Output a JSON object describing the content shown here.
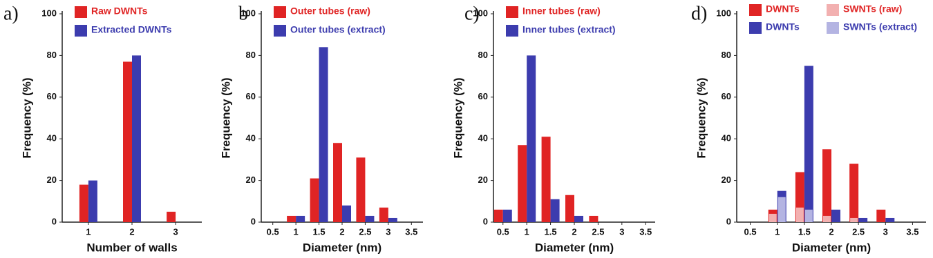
{
  "chart_data": [
    {
      "type": "bar",
      "label": "a)",
      "xlabel": "Number of walls",
      "ylabel": "Frequency (%)",
      "x": [
        1,
        2,
        3
      ],
      "xlim": [
        0.4,
        3.6
      ],
      "xticks": [
        1,
        2,
        3
      ],
      "ylim": [
        0,
        100
      ],
      "yticks": [
        0,
        20,
        40,
        60,
        80,
        100
      ],
      "series": [
        {
          "name": "Raw DWNTs",
          "color": "#e02424",
          "values": [
            18,
            77,
            5
          ]
        },
        {
          "name": "Extracted DWNTs",
          "color": "#3c3cae",
          "values": [
            20,
            80,
            0
          ]
        }
      ]
    },
    {
      "type": "bar",
      "label": "b",
      "xlabel": "Diameter (nm)",
      "ylabel": "Frequency (%)",
      "x": [
        1,
        1.5,
        2,
        2.5,
        3
      ],
      "xlim": [
        0.25,
        3.75
      ],
      "xticks": [
        0.5,
        1,
        1.5,
        2,
        2.5,
        3,
        3.5
      ],
      "ylim": [
        0,
        100
      ],
      "yticks": [
        0,
        20,
        40,
        60,
        80,
        100
      ],
      "series": [
        {
          "name": "Outer tubes (raw)",
          "color": "#e02424",
          "values": [
            3,
            21,
            38,
            31,
            7
          ]
        },
        {
          "name": "Outer tubes (extract)",
          "color": "#3c3cae",
          "values": [
            3,
            84,
            8,
            3,
            2
          ]
        }
      ]
    },
    {
      "type": "bar",
      "label": "c)",
      "xlabel": "Diameter (nm)",
      "ylabel": "Frequency (%)",
      "x": [
        0.5,
        1,
        1.5,
        2,
        2.5
      ],
      "xlim": [
        0.3,
        3.7
      ],
      "xticks": [
        0.5,
        1,
        1.5,
        2,
        2.5,
        3,
        3.5
      ],
      "ylim": [
        0,
        100
      ],
      "yticks": [
        0,
        20,
        40,
        60,
        80,
        100
      ],
      "series": [
        {
          "name": "Inner tubes (raw)",
          "color": "#e02424",
          "values": [
            6,
            37,
            41,
            13,
            3
          ]
        },
        {
          "name": "Inner tubes (extract)",
          "color": "#3c3cae",
          "values": [
            6,
            80,
            11,
            3,
            0
          ]
        }
      ]
    },
    {
      "type": "overlay_bar",
      "label": "d)",
      "xlabel": "Diameter (nm)",
      "ylabel": "Frequency (%)",
      "x": [
        1,
        1.5,
        2,
        2.5,
        3
      ],
      "xlim": [
        0.25,
        3.75
      ],
      "xticks": [
        0.5,
        1,
        1.5,
        2,
        2.5,
        3,
        3.5
      ],
      "ylim": [
        0,
        100
      ],
      "yticks": [
        0,
        20,
        40,
        60,
        80,
        100
      ],
      "series": [
        {
          "name": "DWNTs",
          "color": "#e02424",
          "values": [
            6,
            24,
            35,
            28,
            6
          ]
        },
        {
          "name": "DWNTs",
          "color": "#3c3cae",
          "values": [
            15,
            75,
            6,
            2,
            2
          ]
        },
        {
          "name": "SWNTs (raw)",
          "color": "#f2b0b0",
          "values": [
            4,
            7,
            3,
            2,
            0
          ]
        },
        {
          "name": "SWNTs (extract)",
          "color": "#b4b4e2",
          "values": [
            12,
            6,
            0,
            0,
            0
          ]
        }
      ]
    }
  ]
}
